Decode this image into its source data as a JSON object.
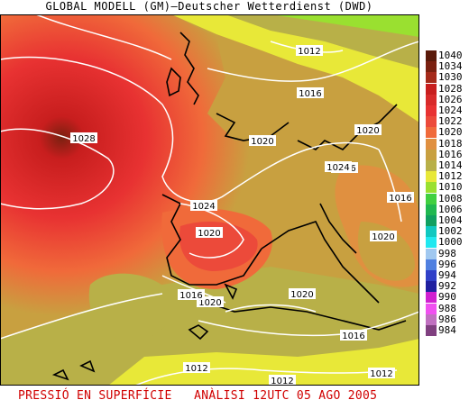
{
  "title": "GLOBAL MODELL (GM)—Deutscher Wetterdienst (DWD)",
  "footer": {
    "left": "PRESSIÓ EN SUPERFÍCIE",
    "right": "ANÀLISI 12UTC 05 AGO 2005"
  },
  "legend": [
    {
      "label": "1040",
      "color": "#5a1a0a"
    },
    {
      "label": "1034",
      "color": "#7a2010"
    },
    {
      "label": "1030",
      "color": "#a52a1a"
    },
    {
      "label": "1028",
      "color": "#c81e1e"
    },
    {
      "label": "1026",
      "color": "#d82a2a"
    },
    {
      "label": "1024",
      "color": "#e83232"
    },
    {
      "label": "1022",
      "color": "#ec4a3a"
    },
    {
      "label": "1020",
      "color": "#f06a3a"
    },
    {
      "label": "1018",
      "color": "#e09040"
    },
    {
      "label": "1016",
      "color": "#c8a040"
    },
    {
      "label": "1014",
      "color": "#b8b048"
    },
    {
      "label": "1012",
      "color": "#e8e838"
    },
    {
      "label": "1010",
      "color": "#9ae030"
    },
    {
      "label": "1008",
      "color": "#40d040"
    },
    {
      "label": "1006",
      "color": "#20b850"
    },
    {
      "label": "1004",
      "color": "#10a060"
    },
    {
      "label": "1002",
      "color": "#10c8c0"
    },
    {
      "label": "1000",
      "color": "#20e8f0"
    },
    {
      "label": "998",
      "color": "#a0c8f0"
    },
    {
      "label": "996",
      "color": "#5080e0"
    },
    {
      "label": "994",
      "color": "#3040c8"
    },
    {
      "label": "992",
      "color": "#2020a0"
    },
    {
      "label": "990",
      "color": "#d020d0"
    },
    {
      "label": "988",
      "color": "#f050f0"
    },
    {
      "label": "986",
      "color": "#c070c0"
    },
    {
      "label": "984",
      "color": "#804080"
    }
  ],
  "isobar_labels": [
    "1028",
    "1024",
    "1020",
    "1020",
    "1016",
    "1016",
    "1012",
    "1016",
    "1020",
    "1020",
    "1016",
    "1012",
    "1012",
    "1020",
    "1024",
    "1020",
    "1016",
    "1012"
  ]
}
